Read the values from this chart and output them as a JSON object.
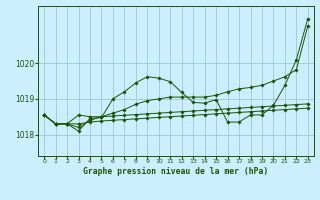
{
  "title": "Graphe pression niveau de la mer (hPa)",
  "bg_color": "#cceeff",
  "grid_color": "#99cccc",
  "line_color": "#1a5500",
  "x_ticks": [
    0,
    1,
    2,
    3,
    4,
    5,
    6,
    7,
    8,
    9,
    10,
    11,
    12,
    13,
    14,
    15,
    16,
    17,
    18,
    19,
    20,
    21,
    22,
    23
  ],
  "y_ticks": [
    1018,
    1019,
    1020
  ],
  "ylim": [
    1017.4,
    1021.6
  ],
  "xlim": [
    -0.5,
    23.5
  ],
  "series": [
    [
      1018.55,
      1018.3,
      1018.3,
      1018.55,
      1018.5,
      1018.5,
      1018.52,
      1018.54,
      1018.56,
      1018.58,
      1018.6,
      1018.62,
      1018.64,
      1018.66,
      1018.68,
      1018.7,
      1018.72,
      1018.74,
      1018.76,
      1018.78,
      1018.8,
      1018.82,
      1018.84,
      1018.86
    ],
    [
      1018.55,
      1018.3,
      1018.3,
      1018.3,
      1018.35,
      1018.38,
      1018.4,
      1018.42,
      1018.44,
      1018.46,
      1018.48,
      1018.5,
      1018.52,
      1018.54,
      1018.56,
      1018.58,
      1018.6,
      1018.62,
      1018.64,
      1018.66,
      1018.68,
      1018.7,
      1018.72,
      1018.74
    ],
    [
      1018.55,
      1018.3,
      1018.3,
      1018.1,
      1018.45,
      1018.48,
      1019.0,
      1019.2,
      1019.45,
      1019.62,
      1019.58,
      1019.48,
      1019.18,
      1018.9,
      1018.88,
      1018.98,
      1018.35,
      1018.35,
      1018.55,
      1018.55,
      1018.82,
      1019.38,
      1020.1,
      1021.25
    ],
    [
      1018.55,
      1018.3,
      1018.3,
      1018.2,
      1018.4,
      1018.5,
      1018.6,
      1018.7,
      1018.85,
      1018.95,
      1019.0,
      1019.05,
      1019.05,
      1019.05,
      1019.05,
      1019.1,
      1019.2,
      1019.28,
      1019.32,
      1019.38,
      1019.5,
      1019.62,
      1019.82,
      1021.05
    ]
  ]
}
